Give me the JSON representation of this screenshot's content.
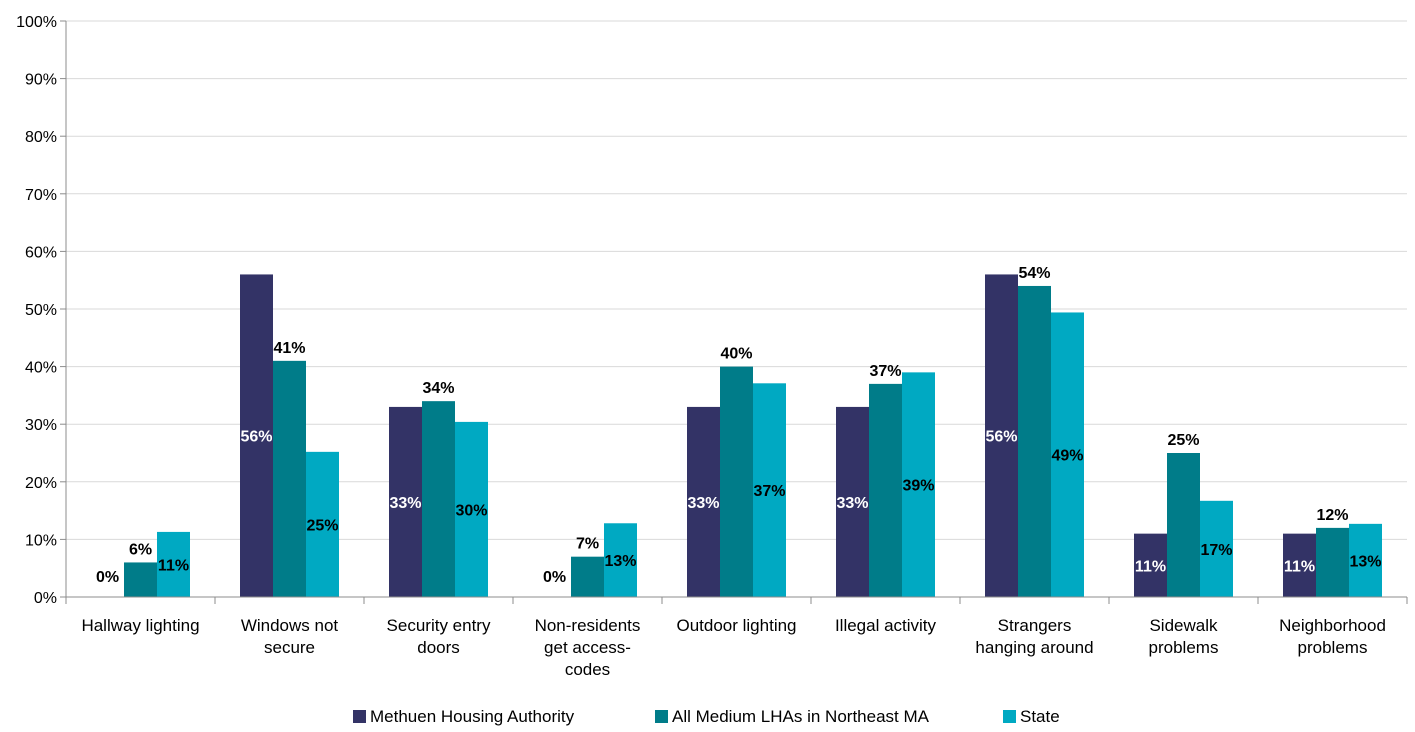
{
  "chart_data": {
    "type": "bar",
    "categories": [
      [
        "Hallway lighting"
      ],
      [
        "Windows not",
        "secure"
      ],
      [
        "Security entry",
        "doors"
      ],
      [
        "Non-residents",
        "get access-",
        "codes"
      ],
      [
        "Outdoor lighting"
      ],
      [
        "Illegal activity"
      ],
      [
        "Strangers",
        "hanging around"
      ],
      [
        "Sidewalk",
        "problems"
      ],
      [
        "Neighborhood",
        "problems"
      ]
    ],
    "series": [
      {
        "name": "Methuen Housing Authority",
        "color": "#333366",
        "values": [
          0,
          56,
          33,
          0,
          33,
          33,
          56,
          11,
          11
        ],
        "labels": [
          "0%",
          "56%",
          "33%",
          "0%",
          "33%",
          "33%",
          "56%",
          "11%",
          "11%"
        ]
      },
      {
        "name": "All Medium LHAs in Northeast MA",
        "color": "#007C89",
        "values": [
          6,
          41,
          34,
          7,
          40,
          37,
          54,
          25,
          12
        ],
        "labels": [
          "6%",
          "41%",
          "34%",
          "7%",
          "40%",
          "37%",
          "54%",
          "25%",
          "12%"
        ]
      },
      {
        "name": "State",
        "color": "#00A9C2",
        "values": [
          11.3,
          25.2,
          30.4,
          12.8,
          37.1,
          39,
          49.4,
          16.7,
          12.7
        ],
        "labels": [
          "11%",
          "25%",
          "30%",
          "13%",
          "37%",
          "39%",
          "49%",
          "17%",
          "13%"
        ]
      }
    ],
    "y_ticks": [
      "0%",
      "10%",
      "20%",
      "30%",
      "40%",
      "50%",
      "60%",
      "70%",
      "80%",
      "90%",
      "100%"
    ],
    "ylim": [
      0,
      100
    ],
    "grid": true,
    "legend_position": "bottom"
  }
}
